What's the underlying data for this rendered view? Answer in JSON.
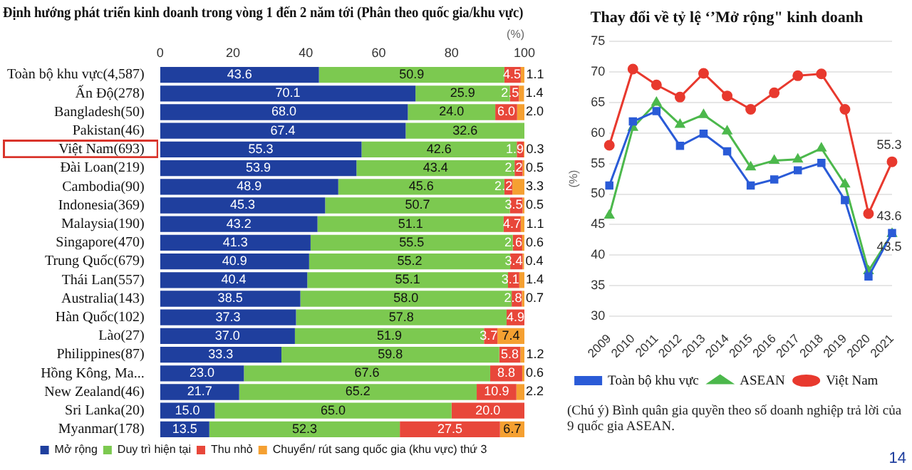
{
  "chart_data": [
    {
      "type": "bar",
      "orientation": "horizontal",
      "stacked": true,
      "title": "Định hướng phát triển kinh doanh trong vòng 1 đến 2 năm tới (Phân theo quốc gia/khu vực)",
      "xlabel": "(%)",
      "categories": [
        "Toàn bộ khu vực(4,587)",
        "Ấn Độ(278)",
        "Bangladesh(50)",
        "Pakistan(46)",
        "Việt Nam(693)",
        "Đài Loan(219)",
        "Cambodia(90)",
        "Indonesia(369)",
        "Malaysia(190)",
        "Singapore(470)",
        "Trung Quốc(679)",
        "Thái Lan(557)",
        "Australia(143)",
        "Hàn Quốc(102)",
        "Lào(27)",
        "Philippines(87)",
        "Hồng Kông, Ma...",
        "New Zealand(46)",
        "Sri Lanka(20)",
        "Myanmar(178)"
      ],
      "series": [
        {
          "name": "Mở rộng",
          "color": "#1f3f9e",
          "values": [
            43.6,
            70.1,
            68.0,
            67.4,
            55.3,
            53.9,
            48.9,
            45.3,
            43.2,
            41.3,
            40.9,
            40.4,
            38.5,
            37.3,
            37.0,
            33.3,
            23.0,
            21.7,
            15.0,
            13.5
          ],
          "value_labels": [
            "43.6",
            "70.1",
            "68.0",
            "67.4",
            "55.3",
            "53.9",
            "48.9",
            "45.3",
            "43.2",
            "41.3",
            "40.9",
            "40.4",
            "38.5",
            "37.3",
            "37.0",
            "33.3",
            "23.0",
            "21.7",
            "15.0",
            "13.5"
          ]
        },
        {
          "name": "Duy trì hiện tại",
          "color": "#7cc950",
          "values": [
            50.9,
            25.9,
            24.0,
            32.6,
            42.6,
            43.4,
            45.6,
            50.7,
            51.1,
            55.5,
            55.2,
            55.1,
            58.0,
            57.8,
            51.9,
            59.8,
            67.6,
            65.2,
            65.0,
            52.3
          ],
          "value_labels": [
            "50.9",
            "25.9",
            "24.0",
            "32.6",
            "42.6",
            "43.4",
            "45.6",
            "50.7",
            "51.1",
            "55.5",
            "55.2",
            "55.1",
            "58.0",
            "57.8",
            "51.9",
            "59.8",
            "67.6",
            "65.2",
            "65.0",
            "52.3"
          ]
        },
        {
          "name": "Thu nhỏ",
          "color": "#e8473a",
          "values": [
            4.5,
            2.5,
            6.0,
            null,
            1.9,
            2.2,
            2.2,
            3.5,
            4.7,
            2.6,
            3.4,
            3.1,
            2.8,
            4.9,
            3.7,
            5.8,
            8.8,
            10.9,
            20.0,
            27.5
          ],
          "value_labels": [
            "4.5",
            "2.5",
            "6.0",
            null,
            "1.9",
            "2.2",
            "2.2",
            "3.5",
            "4.7",
            "2.6",
            "3.4",
            "3.1",
            "2.8",
            "4.9",
            "3.7",
            "5.8",
            "8.8",
            "10.9",
            "20.0",
            "27.5"
          ]
        },
        {
          "name": "Chuyển/ rút sang quốc gia (khu vực) thứ 3",
          "color": "#f5a031",
          "values": [
            1.1,
            1.4,
            2.0,
            null,
            0.3,
            0.5,
            3.3,
            0.5,
            1.1,
            0.6,
            0.4,
            1.4,
            0.7,
            null,
            7.4,
            1.2,
            0.6,
            2.2,
            null,
            6.7
          ],
          "value_labels": [
            "1.1",
            "1.4",
            "2.0",
            null,
            "0.3",
            "0.5",
            "3.3",
            "0.5",
            "1.1",
            "0.6",
            "0.4",
            "1.4",
            "0.7",
            null,
            "7.4",
            "1.2",
            "0.6",
            "2.2",
            null,
            "6.7"
          ]
        }
      ],
      "xlim": [
        0,
        100
      ],
      "xticks": [
        0,
        20,
        40,
        60,
        80,
        100
      ],
      "grid": false,
      "legend": "bottom"
    },
    {
      "type": "line",
      "title": "Thay đổi về tỷ lệ ‘’Mở rộng\" kinh doanh",
      "ylabel": "(%)",
      "categories": [
        "2009",
        "2010",
        "2011",
        "2012",
        "2013",
        "2014",
        "2015",
        "2016",
        "2017",
        "2018",
        "2019",
        "2020",
        "2021"
      ],
      "series": [
        {
          "name": "Toàn bộ khu vực",
          "color": "#2a5bd7",
          "marker": "square",
          "values": [
            51.4,
            61.9,
            63.6,
            57.9,
            59.9,
            57.0,
            51.4,
            52.4,
            53.9,
            55.1,
            49.0,
            36.5,
            43.6
          ]
        },
        {
          "name": "ASEAN",
          "color": "#4cb84c",
          "marker": "triangle",
          "values": [
            46.5,
            60.9,
            65.0,
            61.4,
            63.0,
            60.3,
            54.4,
            55.5,
            55.7,
            57.5,
            51.6,
            37.4,
            43.5
          ]
        },
        {
          "name": "Việt Nam",
          "color": "#e8392e",
          "marker": "circle",
          "values": [
            58.0,
            70.5,
            67.9,
            65.9,
            69.8,
            66.1,
            63.9,
            66.6,
            69.4,
            69.7,
            63.9,
            46.8,
            55.3
          ]
        }
      ],
      "ylim": [
        30,
        75
      ],
      "yticks": [
        30,
        35,
        40,
        45,
        50,
        55,
        60,
        65,
        70,
        75
      ],
      "grid": "y",
      "legend": "bottom",
      "annotations": [
        {
          "text": "55.3",
          "x": "2021",
          "y": 55.3
        },
        {
          "text": "43.6",
          "x": "2021",
          "y": 43.6
        },
        {
          "text": "43.5",
          "x": "2021",
          "y": 43.5
        },
        "(Chú ý) Bình quân gia quyền theo số doanh nghiệp trả lời của 9 quốc gia ASEAN.",
        "14"
      ]
    }
  ]
}
